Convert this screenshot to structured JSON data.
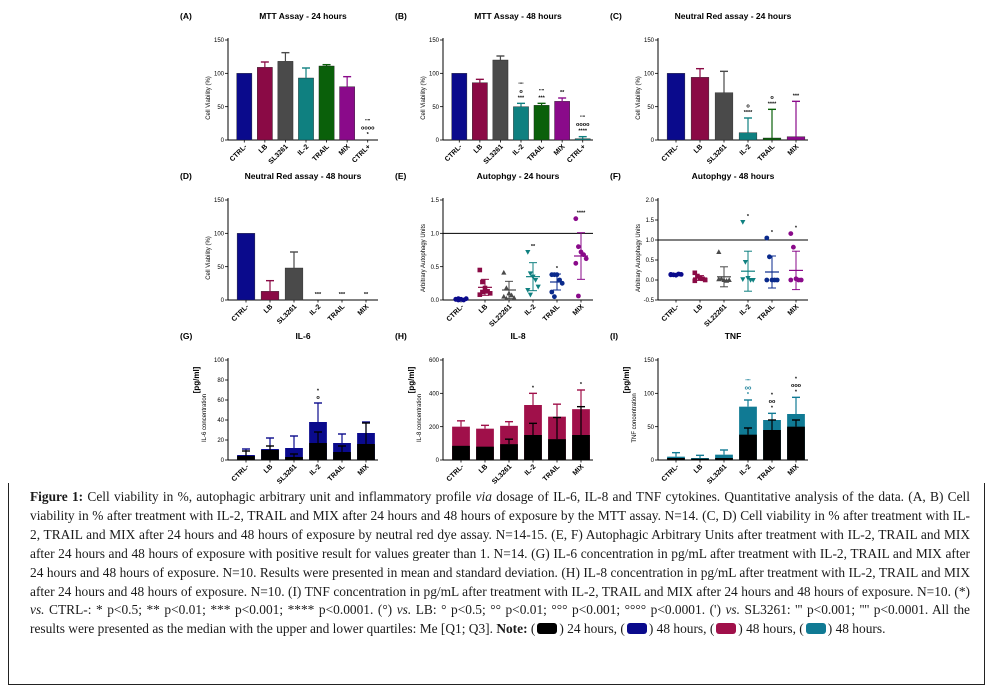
{
  "chart_data": [
    {
      "id": "A",
      "panel_label": "(A)",
      "type": "bar",
      "title": "MTT Assay - 24 hours",
      "ylabel": "Cell Viability (%)",
      "ylim": [
        0,
        150
      ],
      "yticks": [
        0,
        50,
        100,
        150
      ],
      "categories": [
        "CTRL-",
        "LB",
        "SL3261",
        "IL-2",
        "TRAIL",
        "MIX",
        "CTRL+"
      ],
      "values": [
        100,
        109,
        118,
        93,
        111,
        80,
        0
      ],
      "errors": [
        0,
        8,
        13,
        15,
        2,
        15,
        0
      ],
      "colors": [
        "#0a0a8c",
        "#8a0a45",
        "#4a4a4a",
        "#0f8080",
        "#0a600a",
        "#8a0a8a",
        "#0f8080"
      ],
      "annotations": [
        {
          "category": "CTRL+",
          "labels": [
            "''''",
            "oooo",
            "*"
          ]
        }
      ]
    },
    {
      "id": "B",
      "panel_label": "(B)",
      "type": "bar",
      "title": "MTT Assay - 48 hours",
      "ylabel": "Cell Viability (%)",
      "ylim": [
        0,
        150
      ],
      "yticks": [
        0,
        50,
        100,
        150
      ],
      "categories": [
        "CTRL-",
        "LB",
        "SL3261",
        "IL-2",
        "TRAIL",
        "MIX",
        "CTRL+"
      ],
      "values": [
        100,
        86,
        120,
        50,
        52,
        58,
        2
      ],
      "errors": [
        0,
        5,
        6,
        5,
        3,
        5,
        3
      ],
      "colors": [
        "#0a0a8c",
        "#8a0a45",
        "#4a4a4a",
        "#0f8080",
        "#0a600a",
        "#8a0a8a",
        "#0f8080"
      ],
      "annotations": [
        {
          "category": "IL-2",
          "labels": [
            "''''",
            "o",
            "***"
          ]
        },
        {
          "category": "TRAIL",
          "labels": [
            "''''",
            "***"
          ]
        },
        {
          "category": "MIX",
          "labels": [
            "**"
          ]
        },
        {
          "category": "CTRL+",
          "labels": [
            "''''",
            "oooo",
            "****"
          ]
        }
      ]
    },
    {
      "id": "C",
      "panel_label": "(C)",
      "type": "bar",
      "title": "Neutral Red assay - 24 hours",
      "ylabel": "Cell Viability (%)",
      "ylim": [
        0,
        150
      ],
      "yticks": [
        0,
        50,
        100,
        150
      ],
      "categories": [
        "CTRL-",
        "LB",
        "SL3261",
        "IL-2",
        "TRAIL",
        "MIX"
      ],
      "values": [
        100,
        94,
        71,
        11,
        3,
        5
      ],
      "errors": [
        0,
        13,
        32,
        22,
        43,
        53
      ],
      "colors": [
        "#0a0a8c",
        "#8a0a45",
        "#4a4a4a",
        "#0f8080",
        "#0a600a",
        "#8a0a8a"
      ],
      "annotations": [
        {
          "category": "IL-2",
          "labels": [
            "o",
            "****"
          ]
        },
        {
          "category": "TRAIL",
          "labels": [
            "o",
            "****"
          ]
        },
        {
          "category": "MIX",
          "labels": [
            "***"
          ]
        }
      ]
    },
    {
      "id": "D",
      "panel_label": "(D)",
      "type": "bar",
      "title": "Neutral Red assay - 48 hours",
      "ylabel": "Cell Viability (%)",
      "ylim": [
        0,
        150
      ],
      "yticks": [
        0,
        50,
        100,
        150
      ],
      "categories": [
        "CTRL-",
        "LB",
        "SL3261",
        "IL-2",
        "TRAIL",
        "MIX"
      ],
      "values": [
        100,
        13,
        48,
        0,
        0,
        0
      ],
      "errors": [
        0,
        16,
        24,
        0,
        0,
        0
      ],
      "colors": [
        "#0a0a8c",
        "#8a0a45",
        "#4a4a4a",
        "#0f8080",
        "#0a600a",
        "#8a0a8a"
      ],
      "annotations": [
        {
          "category": "IL-2",
          "labels": [
            "***"
          ]
        },
        {
          "category": "TRAIL",
          "labels": [
            "***"
          ]
        },
        {
          "category": "MIX",
          "labels": [
            "**"
          ]
        }
      ]
    },
    {
      "id": "E",
      "panel_label": "(E)",
      "type": "scatter",
      "title": "Autophgy - 24 hours",
      "ylabel": "Arbitrary Autophagy Units",
      "ylim": [
        0,
        1.5
      ],
      "yticks": [
        0.0,
        0.5,
        1.0,
        1.5
      ],
      "ytick_labels": [
        "0.0",
        "0.5",
        "1.0",
        "1.5"
      ],
      "reference_line": 1.0,
      "categories": [
        "CTRL-",
        "LB",
        "SL22261",
        "IL-2",
        "TRAIL",
        "MIX"
      ],
      "markers": [
        "circle",
        "square",
        "triangle",
        "triangle-down",
        "circle",
        "circle"
      ],
      "colors": [
        "#0a0a8c",
        "#8a0a45",
        "#4a4a4a",
        "#0f8080",
        "#0a2a8c",
        "#8a0a8a"
      ],
      "points": [
        [
          0.01,
          0.02,
          0.01,
          0.0,
          0.02,
          0.01,
          0.0
        ],
        [
          0.45,
          0.27,
          0.18,
          0.13,
          0.1,
          0.08,
          0.12
        ],
        [
          0.41,
          0.18,
          0.1,
          0.07,
          0.03,
          0.05,
          0.02
        ],
        [
          0.72,
          0.4,
          0.35,
          0.3,
          0.2,
          0.15,
          0.08
        ],
        [
          0.38,
          0.38,
          0.38,
          0.3,
          0.25,
          0.12,
          0.05
        ],
        [
          1.22,
          0.8,
          0.72,
          0.68,
          0.62,
          0.55,
          0.06
        ]
      ],
      "mean": [
        0.01,
        0.19,
        0.15,
        0.35,
        0.27,
        0.66
      ],
      "sd": [
        0.01,
        0.12,
        0.13,
        0.21,
        0.12,
        0.35
      ],
      "annotations": [
        {
          "category": "TRAIL",
          "labels": [
            "*"
          ]
        },
        {
          "category": "IL-2",
          "labels": [
            "**"
          ]
        },
        {
          "category": "MIX",
          "labels": [
            "****"
          ]
        }
      ]
    },
    {
      "id": "F",
      "panel_label": "(F)",
      "type": "scatter",
      "title": "Autophgy - 48 hours",
      "ylabel": "Arbitrary Autophagy Units",
      "ylim": [
        -0.5,
        2.0
      ],
      "yticks": [
        -0.5,
        0.0,
        0.5,
        1.0,
        1.5,
        2.0
      ],
      "ytick_labels": [
        "-0.5",
        "0.0",
        "0.5",
        "1.0",
        "1.5",
        "2.0"
      ],
      "reference_line": 1.0,
      "categories": [
        "CTRL-",
        "LB",
        "SL22261",
        "IL-2",
        "TRAIL",
        "MIX"
      ],
      "markers": [
        "circle",
        "square",
        "triangle",
        "triangle-down",
        "circle",
        "circle"
      ],
      "colors": [
        "#0a0a8c",
        "#8a0a45",
        "#4a4a4a",
        "#0f8080",
        "#0a2a8c",
        "#8a0a8a"
      ],
      "points": [
        [
          0.14,
          0.13,
          0.12,
          0.15,
          0.14,
          0.13
        ],
        [
          0.18,
          0.1,
          0.05,
          0.03,
          0.0,
          -0.02
        ],
        [
          0.7,
          0.03,
          0.0,
          -0.02,
          0.0,
          0.02
        ],
        [
          1.45,
          0.45,
          0.05,
          0.0,
          0.0,
          0.02
        ],
        [
          1.05,
          0.58,
          0.0,
          0.0,
          0.0,
          0.0
        ],
        [
          1.16,
          0.82,
          0.03,
          0.0,
          0.0,
          0.0
        ]
      ],
      "mean": [
        0.14,
        0.05,
        0.08,
        0.22,
        0.2,
        0.24
      ],
      "sd": [
        0.01,
        0.06,
        0.25,
        0.5,
        0.4,
        0.48
      ],
      "annotations": [
        {
          "category": "IL-2",
          "labels": [
            "*"
          ]
        },
        {
          "category": "TRAIL",
          "labels": [
            "*"
          ]
        },
        {
          "category": "MIX",
          "labels": [
            "*"
          ]
        }
      ]
    },
    {
      "id": "G",
      "panel_label": "(G)",
      "type": "bar",
      "stacked": true,
      "title": "IL-6",
      "ylabel": "IL-6 concentration",
      "yunit": "[pg/ml]",
      "ylim": [
        0,
        100
      ],
      "yticks": [
        0,
        20,
        40,
        60,
        80,
        100
      ],
      "categories": [
        "CTRL-",
        "LB",
        "SL3261",
        "IL-2",
        "TRAIL",
        "MIX"
      ],
      "series": [
        {
          "name": "24 hours",
          "color": "#000000",
          "values": [
            4,
            10,
            3,
            17,
            8,
            16
          ],
          "errors": [
            5,
            4,
            3,
            11,
            6,
            21
          ]
        },
        {
          "name": "48 hours",
          "color": "#0a0a8c",
          "values": [
            5,
            11,
            12,
            38,
            17,
            27
          ],
          "errors": [
            6,
            11,
            12,
            19,
            9,
            11
          ]
        }
      ],
      "annotations": [
        {
          "category": "IL-2",
          "labels": [
            "*",
            "o"
          ]
        }
      ]
    },
    {
      "id": "H",
      "panel_label": "(H)",
      "type": "bar",
      "stacked": true,
      "title": "IL-8",
      "ylabel": "IL-8 concentration",
      "yunit": "[pg/ml]",
      "ylim": [
        0,
        600
      ],
      "yticks": [
        0,
        200,
        400,
        600
      ],
      "categories": [
        "CTRL-",
        "LB",
        "SL3261",
        "IL-2",
        "TRAIL",
        "MIX"
      ],
      "series": [
        {
          "name": "24 hours",
          "color": "#000000",
          "values": [
            85,
            80,
            95,
            150,
            125,
            150
          ],
          "errors": [
            0,
            0,
            30,
            70,
            130,
            170
          ]
        },
        {
          "name": "48 hours",
          "color": "#a0104a",
          "values": [
            200,
            188,
            205,
            330,
            260,
            305
          ],
          "errors": [
            35,
            20,
            25,
            70,
            75,
            115
          ]
        }
      ],
      "annotations": [
        {
          "category": "IL-2",
          "labels": [
            "*"
          ]
        },
        {
          "category": "MIX",
          "labels": [
            "*"
          ]
        }
      ]
    },
    {
      "id": "I",
      "panel_label": "(I)",
      "type": "bar",
      "stacked": true,
      "title": "TNF",
      "ylabel": "TNF concentration",
      "yunit": "[pg/ml]",
      "ylim": [
        0,
        150
      ],
      "yticks": [
        0,
        50,
        100,
        150
      ],
      "categories": [
        "CTRL-",
        "LB",
        "SL3261",
        "IL-2",
        "TRAIL",
        "MIX"
      ],
      "series": [
        {
          "name": "24 hours",
          "color": "#000000",
          "values": [
            3,
            2,
            3,
            38,
            45,
            50
          ],
          "errors": [
            0,
            0,
            0,
            10,
            15,
            10
          ]
        },
        {
          "name": "48 hours",
          "color": "#107a94",
          "values": [
            5,
            3,
            8,
            80,
            60,
            69
          ],
          "errors": [
            6,
            4,
            7,
            10,
            10,
            25
          ]
        }
      ],
      "annotations": [
        {
          "category": "IL-2",
          "labels": [
            "''''",
            "oo",
            "*"
          ],
          "color": "#107a94"
        },
        {
          "category": "TRAIL",
          "labels": [
            "*",
            "oo",
            "*"
          ]
        },
        {
          "category": "MIX",
          "labels": [
            "*",
            "ooo",
            "*"
          ]
        }
      ]
    }
  ],
  "caption": {
    "bold_lead": "Figure 1:",
    "part1": " Cell viability in %, autophagic arbitrary unit and inflammatory profile ",
    "via": "via",
    "part2": " dosage of IL-6, IL-8 and TNF cytokines. Quantitative analysis of the data. (A, B) Cell viability in % after treatment with IL-2, TRAIL and MIX after 24 hours and 48 hours of exposure by the MTT assay. N=14. (C, D) Cell viability in % after treatment with IL-2, TRAIL and MIX after 24 hours and 48 hours of exposure by neutral red dye assay. N=14-15. (E, F) Autophagic Arbitrary Units after treatment with IL-2, TRAIL and MIX after 24 hours and 48 hours of exposure with positive result for values greater than 1. N=14. (G) IL-6 concentration in pg/mL after treatment with IL-2, TRAIL and MIX after 24 hours and 48 hours of exposure. N=10. Results were presented in mean and standard deviation.  (H) IL-8 concentration in pg/mL after treatment with IL-2, TRAIL and MIX after 24 hours and 48 hours of exposure. N=10. (I) TNF concentration in pg/mL after treatment with IL-2, TRAIL and MIX after 24 hours and 48 hours of exposure. N=10.  (*) ",
    "vs1": "vs.",
    "part3": " CTRL-: * p<0.5; ** p<0.01; *** p<0.001; **** p<0.0001. (°) ",
    "vs2": "vs.",
    "part4": " LB: ° p<0.5; °° p<0.01; °°° p<0.001; °°°° p<0.0001. (') ",
    "vs3": "vs.",
    "part5": " SL3261: ''' p<0.001; '''' p<0.0001. All the results were presented as the median with the upper and lower quartiles: Me [Q1; Q3]. ",
    "note_label": "Note:",
    "legend": [
      {
        "color": "#000000",
        "label": ") 24 hours,"
      },
      {
        "color": "#0a0a8c",
        "label": ") 48 hours,"
      },
      {
        "color": "#a0104a",
        "label": ") 48 hours,"
      },
      {
        "color": "#107a94",
        "label": ") 48 hours."
      }
    ]
  }
}
